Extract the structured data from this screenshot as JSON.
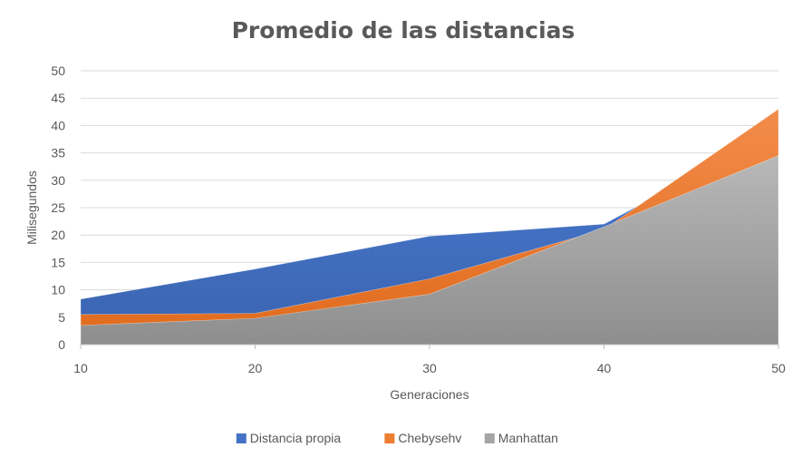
{
  "chart_data": {
    "type": "area",
    "title": "Promedio de las distancias",
    "xlabel": "Generaciones",
    "ylabel": "Milisegundos",
    "x": [
      10,
      20,
      30,
      40,
      50
    ],
    "xlim": [
      10,
      50
    ],
    "ylim": [
      0,
      50
    ],
    "yticks": [
      0,
      5,
      10,
      15,
      20,
      25,
      30,
      35,
      40,
      45,
      50
    ],
    "grid": true,
    "legend_position": "bottom",
    "series": [
      {
        "name": "Distancia propia",
        "values": [
          8.3,
          13.8,
          19.8,
          22.0,
          39.0
        ],
        "color": "#4472C4"
      },
      {
        "name": "Chebysehv",
        "values": [
          5.5,
          5.7,
          12.0,
          21.0,
          43.0
        ],
        "color": "#ED7D31"
      },
      {
        "name": "Manhattan",
        "values": [
          3.5,
          4.8,
          9.2,
          21.5,
          34.5
        ],
        "color": "#A5A5A5"
      }
    ]
  }
}
